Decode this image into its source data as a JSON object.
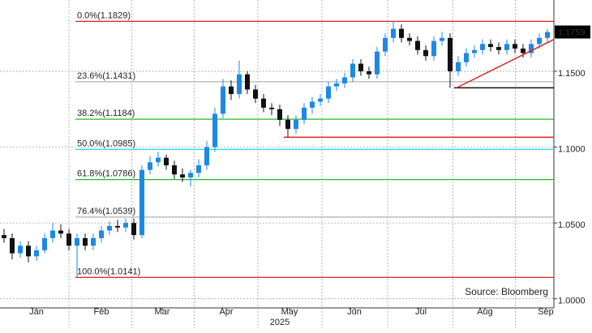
{
  "chart_data": {
    "type": "candlestick",
    "x_axis_label": "2025",
    "source": "Source: Bloomberg",
    "xlim": [
      -0.5,
      67.8
    ],
    "xticks": [
      {
        "value": 4,
        "label": "Jan"
      },
      {
        "value": 12,
        "label": "Feb"
      },
      {
        "value": 19.5,
        "label": "Mar"
      },
      {
        "value": 27.4,
        "label": "Apr"
      },
      {
        "value": 35.2,
        "label": "May"
      },
      {
        "value": 43.2,
        "label": "Jun"
      },
      {
        "value": 51.4,
        "label": "Jul"
      },
      {
        "value": 59.3,
        "label": "Aug"
      },
      {
        "value": 66.8,
        "label": "Sep"
      }
    ],
    "ylim": [
      0.994,
      1.197
    ],
    "yticks": [
      {
        "value": 1.0,
        "label": "1.0000"
      },
      {
        "value": 1.05,
        "label": "1.0500"
      },
      {
        "value": 1.1,
        "label": "1.1000"
      },
      {
        "value": 1.15,
        "label": "1.1500"
      }
    ],
    "grid": true,
    "up_color": "#1e88e5",
    "down_color": "#111111",
    "x": [
      0,
      1,
      2,
      3,
      4,
      5,
      6,
      7,
      8,
      9,
      10,
      11,
      12,
      13,
      14,
      15,
      16,
      17,
      18,
      19,
      20,
      21,
      22,
      23,
      24,
      25,
      26,
      27,
      28,
      29,
      30,
      31,
      32,
      33,
      34,
      35,
      36,
      37,
      38,
      39,
      40,
      41,
      42,
      43,
      44,
      45,
      46,
      47,
      48,
      49,
      50,
      51,
      52,
      53,
      54,
      55,
      56,
      57,
      58,
      59,
      60,
      61,
      62,
      63,
      64,
      65,
      66,
      67
    ],
    "open": [
      1.042,
      1.04,
      1.03,
      1.035,
      1.028,
      1.032,
      1.04,
      1.045,
      1.043,
      1.035,
      1.04,
      1.035,
      1.04,
      1.045,
      1.048,
      1.047,
      1.05,
      1.042,
      1.085,
      1.09,
      1.093,
      1.088,
      1.082,
      1.08,
      1.083,
      1.088,
      1.1,
      1.122,
      1.14,
      1.135,
      1.148,
      1.138,
      1.132,
      1.126,
      1.125,
      1.118,
      1.112,
      1.118,
      1.126,
      1.13,
      1.132,
      1.14,
      1.142,
      1.146,
      1.155,
      1.15,
      1.148,
      1.163,
      1.172,
      1.178,
      1.172,
      1.17,
      1.164,
      1.16,
      1.17,
      1.172,
      1.15,
      1.156,
      1.162,
      1.164,
      1.168,
      1.166,
      1.164,
      1.168,
      1.165,
      1.162,
      1.168,
      1.172
    ],
    "high": [
      1.046,
      1.043,
      1.038,
      1.038,
      1.035,
      1.043,
      1.05,
      1.049,
      1.046,
      1.043,
      1.043,
      1.043,
      1.048,
      1.051,
      1.052,
      1.053,
      1.053,
      1.088,
      1.094,
      1.097,
      1.095,
      1.091,
      1.086,
      1.085,
      1.092,
      1.104,
      1.126,
      1.145,
      1.144,
      1.157,
      1.15,
      1.141,
      1.135,
      1.129,
      1.128,
      1.121,
      1.121,
      1.129,
      1.133,
      1.135,
      1.143,
      1.145,
      1.149,
      1.158,
      1.158,
      1.153,
      1.166,
      1.175,
      1.1829,
      1.181,
      1.175,
      1.173,
      1.167,
      1.173,
      1.176,
      1.175,
      1.16,
      1.165,
      1.167,
      1.171,
      1.171,
      1.169,
      1.171,
      1.171,
      1.168,
      1.171,
      1.175,
      1.178
    ],
    "low": [
      1.037,
      1.026,
      1.027,
      1.024,
      1.025,
      1.03,
      1.037,
      1.04,
      1.032,
      1.0141,
      1.032,
      1.032,
      1.037,
      1.042,
      1.044,
      1.044,
      1.039,
      1.04,
      1.082,
      1.087,
      1.085,
      1.079,
      1.077,
      1.074,
      1.08,
      1.085,
      1.097,
      1.119,
      1.131,
      1.132,
      1.135,
      1.129,
      1.123,
      1.121,
      1.114,
      1.1065,
      1.109,
      1.115,
      1.122,
      1.127,
      1.129,
      1.137,
      1.139,
      1.143,
      1.147,
      1.145,
      1.145,
      1.16,
      1.169,
      1.169,
      1.167,
      1.161,
      1.157,
      1.157,
      1.167,
      1.1391,
      1.147,
      1.153,
      1.159,
      1.161,
      1.163,
      1.161,
      1.161,
      1.162,
      1.159,
      1.159,
      1.165,
      1.169
    ],
    "close": [
      1.04,
      1.03,
      1.035,
      1.028,
      1.032,
      1.04,
      1.045,
      1.043,
      1.035,
      1.04,
      1.035,
      1.04,
      1.045,
      1.048,
      1.047,
      1.05,
      1.042,
      1.085,
      1.09,
      1.093,
      1.088,
      1.082,
      1.08,
      1.083,
      1.088,
      1.1,
      1.122,
      1.14,
      1.135,
      1.148,
      1.138,
      1.132,
      1.126,
      1.125,
      1.118,
      1.112,
      1.118,
      1.126,
      1.13,
      1.132,
      1.14,
      1.142,
      1.146,
      1.155,
      1.15,
      1.148,
      1.163,
      1.172,
      1.178,
      1.172,
      1.17,
      1.164,
      1.16,
      1.17,
      1.172,
      1.15,
      1.156,
      1.162,
      1.164,
      1.168,
      1.166,
      1.164,
      1.168,
      1.165,
      1.162,
      1.168,
      1.172,
      1.1759
    ],
    "last_price": 1.1759,
    "fib_levels": [
      {
        "label": "0.0%(1.1829)",
        "value": 1.1829,
        "color": "#e02020"
      },
      {
        "label": "23.6%(1.1431)",
        "value": 1.1431,
        "color": "#b0b0b0"
      },
      {
        "label": "38.2%(1.1184)",
        "value": 1.1184,
        "color": "#22bb22"
      },
      {
        "label": "50.0%(1.0985)",
        "value": 1.0985,
        "color": "#22dddd"
      },
      {
        "label": "61.8%(1.0786)",
        "value": 1.0786,
        "color": "#22bb22"
      },
      {
        "label": "76.4%(1.0539)",
        "value": 1.0539,
        "color": "#b0b0b0"
      },
      {
        "label": "100.0%(1.0141)",
        "value": 1.0141,
        "color": "#e02020"
      }
    ],
    "fib_start": 8.8,
    "support_lines": [
      {
        "value": 1.1391,
        "start": 55.5,
        "color": "#111111"
      },
      {
        "value": 1.1065,
        "start": 34.5,
        "color": "#e02020"
      }
    ],
    "trendline": {
      "x": [
        55.8,
        67.8
      ],
      "y": [
        1.1391,
        1.171
      ],
      "color": "#e02020"
    }
  }
}
